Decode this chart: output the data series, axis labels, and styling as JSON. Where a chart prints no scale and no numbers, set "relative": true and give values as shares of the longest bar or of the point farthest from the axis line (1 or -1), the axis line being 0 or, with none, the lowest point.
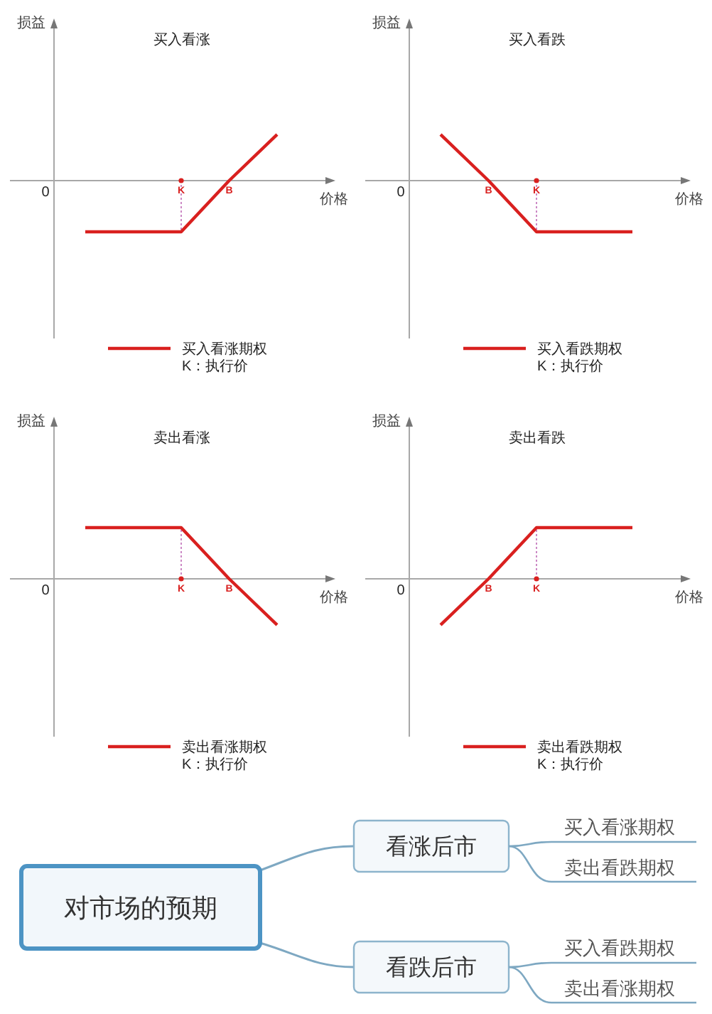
{
  "chart_data": [
    {
      "type": "line",
      "title": "买入看涨",
      "xlabel": "价格",
      "ylabel": "损益",
      "categories": [
        null,
        null,
        "K",
        "B",
        null
      ],
      "relative": true,
      "series": [
        {
          "name": "买入看涨期权",
          "color": "#d9201f",
          "values": [
            -1,
            -1,
            -1,
            0,
            0.9
          ]
        }
      ],
      "ref_lines": [
        {
          "axis": "x",
          "value": "K",
          "color": "#c77dbf",
          "line_style": "dotted"
        }
      ],
      "annotations": [
        "0",
        "K：执行价"
      ],
      "legend": "bottom"
    },
    {
      "type": "line",
      "title": "买入看跌",
      "xlabel": "价格",
      "ylabel": "损益",
      "categories": [
        null,
        "B",
        "K",
        null,
        null
      ],
      "relative": true,
      "series": [
        {
          "name": "买入看跌期权",
          "color": "#d9201f",
          "values": [
            0.9,
            0,
            -1,
            -1,
            -1
          ]
        }
      ],
      "ref_lines": [
        {
          "axis": "x",
          "value": "K",
          "color": "#c77dbf",
          "line_style": "dotted"
        }
      ],
      "annotations": [
        "0",
        "K：执行价"
      ],
      "legend": "bottom"
    },
    {
      "type": "line",
      "title": "卖出看涨",
      "xlabel": "价格",
      "ylabel": "损益",
      "categories": [
        null,
        null,
        "K",
        "B",
        null
      ],
      "relative": true,
      "series": [
        {
          "name": "卖出看涨期权",
          "color": "#d9201f",
          "values": [
            1,
            1,
            1,
            0,
            -0.9
          ]
        }
      ],
      "ref_lines": [
        {
          "axis": "x",
          "value": "K",
          "color": "#c77dbf",
          "line_style": "dotted"
        }
      ],
      "annotations": [
        "0",
        "K：执行价"
      ],
      "legend": "bottom"
    },
    {
      "type": "line",
      "title": "卖出看跌",
      "xlabel": "价格",
      "ylabel": "损益",
      "categories": [
        null,
        "B",
        "K",
        null,
        null
      ],
      "relative": true,
      "series": [
        {
          "name": "卖出看跌期权",
          "color": "#d9201f",
          "values": [
            -0.9,
            0,
            1,
            1,
            1
          ]
        }
      ],
      "ref_lines": [
        {
          "axis": "x",
          "value": "K",
          "color": "#c77dbf",
          "line_style": "dotted"
        }
      ],
      "annotations": [
        "0",
        "K：执行价"
      ],
      "legend": "bottom"
    },
    {
      "type": "other",
      "title": "对市场的预期",
      "categories": [
        "看涨后市",
        "看跌后市"
      ],
      "annotations": [
        "买入看涨期权",
        "卖出看跌期权",
        "买入看跌期权",
        "卖出看涨期权"
      ]
    }
  ]
}
